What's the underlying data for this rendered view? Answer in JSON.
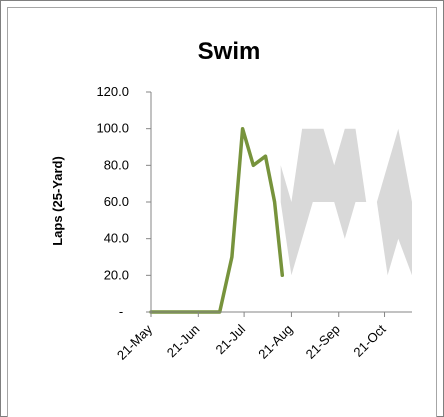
{
  "chart_data": {
    "type": "line",
    "title": "Swim",
    "xlabel": "",
    "ylabel": "Laps (25-Yard)",
    "ylim": [
      0,
      120
    ],
    "y_ticks": [
      {
        "value": 0,
        "label": "-"
      },
      {
        "value": 20,
        "label": "20.0"
      },
      {
        "value": 40,
        "label": "40.0"
      },
      {
        "value": 60,
        "label": "60.0"
      },
      {
        "value": 80,
        "label": "80.0"
      },
      {
        "value": 100,
        "label": "100.0"
      },
      {
        "value": 120,
        "label": "120.0"
      }
    ],
    "x_ticks": [
      "21-May",
      "21-Jun",
      "21-Jul",
      "21-Aug",
      "21-Sep",
      "21-Oct"
    ],
    "xlim": [
      "2023-05-21",
      "2023-11-08"
    ],
    "grid": false,
    "legend": "none",
    "series": [
      {
        "type": "area",
        "color": "#d9d9d9",
        "x": [
          "2023-08-14",
          "2023-08-21",
          "2023-08-28",
          "2023-09-04",
          "2023-09-11",
          "2023-09-18",
          "2023-09-25",
          "2023-10-02",
          "2023-10-09",
          "2023-10-16",
          "2023-10-23",
          "2023-10-30",
          "2023-11-08"
        ],
        "upper": [
          80,
          60,
          100,
          100,
          100,
          80,
          100,
          100,
          60,
          60,
          80,
          100,
          60
        ],
        "lower": [
          60,
          20,
          40,
          60,
          60,
          60,
          40,
          60,
          60,
          60,
          20,
          40,
          20
        ]
      },
      {
        "type": "line",
        "color": "#77933c",
        "x": [
          "2023-05-21",
          "2023-06-01",
          "2023-06-15",
          "2023-06-28",
          "2023-07-05",
          "2023-07-13",
          "2023-07-20",
          "2023-07-27",
          "2023-08-04",
          "2023-08-10",
          "2023-08-15"
        ],
        "y": [
          0,
          0,
          0,
          0,
          0,
          30,
          100,
          80,
          85,
          60,
          20
        ]
      }
    ]
  }
}
